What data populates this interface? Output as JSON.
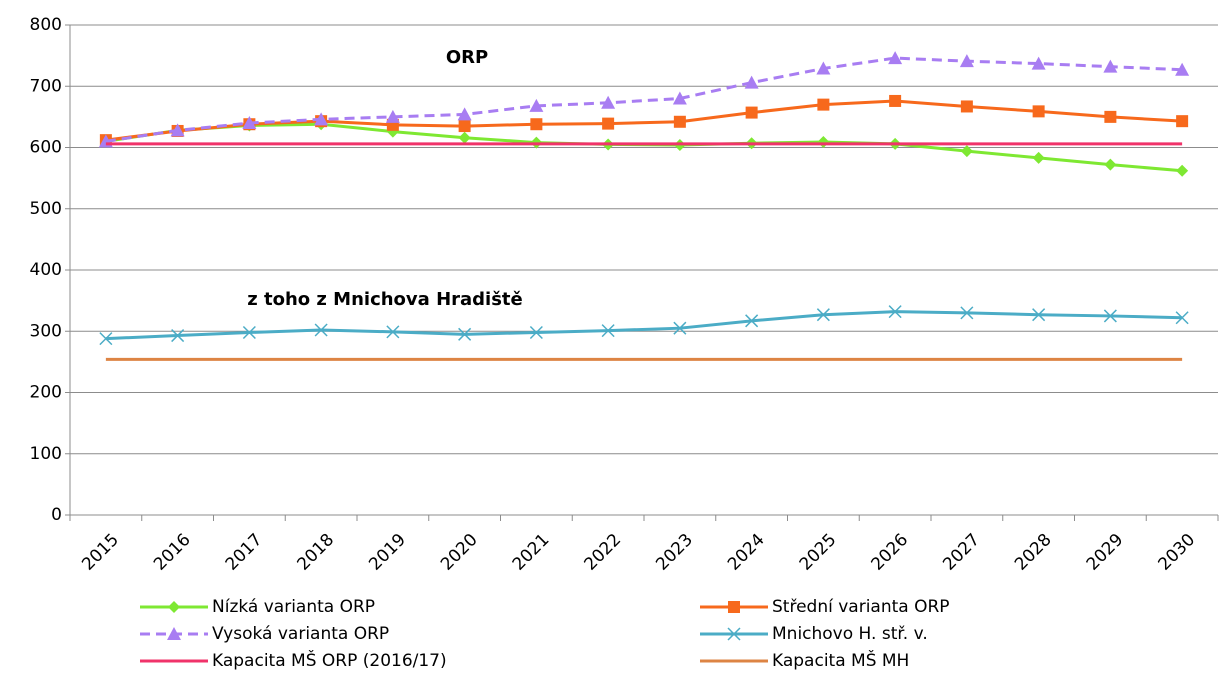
{
  "chart_data": {
    "type": "line",
    "categories": [
      "2015",
      "2016",
      "2017",
      "2018",
      "2019",
      "2020",
      "2021",
      "2022",
      "2023",
      "2024",
      "2025",
      "2026",
      "2027",
      "2028",
      "2029",
      "2030"
    ],
    "series": [
      {
        "name": "Nízká varianta ORP",
        "color": "#7ee832",
        "marker": "diamond",
        "dashed": false,
        "values": [
          610,
          628,
          636,
          638,
          626,
          616,
          608,
          605,
          604,
          607,
          609,
          606,
          594,
          583,
          572,
          562
        ]
      },
      {
        "name": "Střední varianta ORP",
        "color": "#f7691c",
        "marker": "square",
        "dashed": false,
        "values": [
          612,
          627,
          638,
          643,
          637,
          635,
          638,
          639,
          642,
          657,
          670,
          676,
          667,
          659,
          650,
          643
        ]
      },
      {
        "name": "Vysoká varianta ORP",
        "color": "#a87df2",
        "marker": "triangle",
        "dashed": true,
        "values": [
          610,
          628,
          640,
          646,
          650,
          654,
          668,
          673,
          680,
          706,
          729,
          746,
          741,
          737,
          732,
          727
        ]
      },
      {
        "name": "Mnichovo H. stř. v.",
        "color": "#4bacc6",
        "marker": "x",
        "dashed": false,
        "values": [
          288,
          293,
          298,
          302,
          299,
          295,
          298,
          301,
          305,
          317,
          327,
          332,
          330,
          327,
          325,
          322
        ]
      },
      {
        "name": "Kapacita MŠ ORP (2016/17)",
        "color": "#f0336a",
        "marker": "none",
        "dashed": false,
        "values": [
          606,
          606,
          606,
          606,
          606,
          606,
          606,
          606,
          606,
          606,
          606,
          606,
          606,
          606,
          606,
          606
        ]
      },
      {
        "name": "Kapacita MŠ MH",
        "color": "#dd8444",
        "marker": "none",
        "dashed": false,
        "values": [
          254,
          254,
          254,
          254,
          254,
          254,
          254,
          254,
          254,
          254,
          254,
          254,
          254,
          254,
          254,
          254
        ]
      }
    ],
    "annotations": [
      {
        "text": "ORP",
        "color": "#f7691c"
      },
      {
        "text": "z toho z Mnichova Hradiště",
        "color": "#4bacc6"
      }
    ],
    "ylim": [
      0,
      800
    ],
    "yticks": [
      0,
      100,
      200,
      300,
      400,
      500,
      600,
      700,
      800
    ],
    "grid": true
  }
}
